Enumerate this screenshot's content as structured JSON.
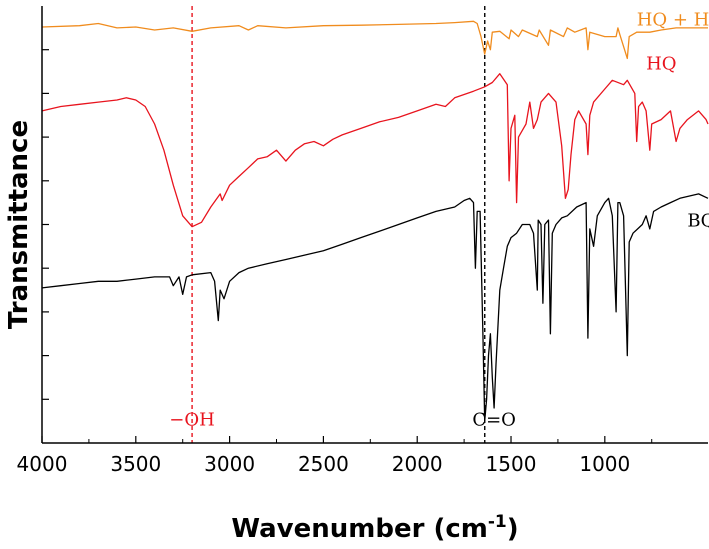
{
  "chart_data": {
    "type": "line",
    "xlabel": "Wavenumber (cm",
    "xlabel_sup": "-1",
    "xlabel_close": ")",
    "ylabel": "Transmittance",
    "xlim": [
      4000,
      450
    ],
    "x_reversed": true,
    "ylim": [
      0,
      10
    ],
    "x_ticks": [
      4000,
      3500,
      3000,
      2500,
      2000,
      1500,
      1000
    ],
    "x_tick_labels": [
      "4000",
      "3500",
      "3000",
      "2500",
      "2000",
      "1500",
      "1000"
    ],
    "y_ticks": [
      1,
      2,
      3,
      4,
      5,
      6,
      7,
      8,
      9
    ],
    "y_tick_labels_shown": false,
    "grid": false,
    "series": [
      {
        "name": "HQ + HTIB",
        "color": "#f08c1e",
        "points": [
          [
            4000,
            9.52
          ],
          [
            3800,
            9.55
          ],
          [
            3700,
            9.6
          ],
          [
            3600,
            9.5
          ],
          [
            3500,
            9.52
          ],
          [
            3400,
            9.45
          ],
          [
            3300,
            9.5
          ],
          [
            3200,
            9.42
          ],
          [
            3100,
            9.5
          ],
          [
            2950,
            9.55
          ],
          [
            2900,
            9.45
          ],
          [
            2850,
            9.55
          ],
          [
            2700,
            9.5
          ],
          [
            2500,
            9.55
          ],
          [
            2300,
            9.56
          ],
          [
            2100,
            9.58
          ],
          [
            1900,
            9.6
          ],
          [
            1800,
            9.62
          ],
          [
            1700,
            9.65
          ],
          [
            1680,
            9.6
          ],
          [
            1660,
            9.3
          ],
          [
            1640,
            8.9
          ],
          [
            1625,
            9.2
          ],
          [
            1610,
            9.0
          ],
          [
            1600,
            9.4
          ],
          [
            1560,
            9.42
          ],
          [
            1510,
            9.25
          ],
          [
            1500,
            9.45
          ],
          [
            1460,
            9.3
          ],
          [
            1440,
            9.45
          ],
          [
            1360,
            9.3
          ],
          [
            1350,
            9.45
          ],
          [
            1300,
            9.1
          ],
          [
            1290,
            9.45
          ],
          [
            1220,
            9.3
          ],
          [
            1200,
            9.5
          ],
          [
            1160,
            9.4
          ],
          [
            1100,
            9.5
          ],
          [
            1090,
            9.0
          ],
          [
            1080,
            9.4
          ],
          [
            1000,
            9.3
          ],
          [
            940,
            9.3
          ],
          [
            930,
            9.5
          ],
          [
            920,
            9.35
          ],
          [
            880,
            8.8
          ],
          [
            870,
            9.3
          ],
          [
            830,
            9.4
          ],
          [
            760,
            9.4
          ],
          [
            700,
            9.45
          ],
          [
            620,
            9.5
          ],
          [
            560,
            9.5
          ],
          [
            500,
            9.5
          ],
          [
            450,
            9.5
          ]
        ]
      },
      {
        "name": "HQ",
        "color": "#e8141e",
        "points": [
          [
            4000,
            7.6
          ],
          [
            3900,
            7.7
          ],
          [
            3800,
            7.75
          ],
          [
            3700,
            7.8
          ],
          [
            3600,
            7.85
          ],
          [
            3550,
            7.9
          ],
          [
            3500,
            7.85
          ],
          [
            3450,
            7.7
          ],
          [
            3400,
            7.3
          ],
          [
            3350,
            6.7
          ],
          [
            3300,
            5.9
          ],
          [
            3250,
            5.2
          ],
          [
            3200,
            4.95
          ],
          [
            3150,
            5.05
          ],
          [
            3100,
            5.4
          ],
          [
            3050,
            5.7
          ],
          [
            3040,
            5.55
          ],
          [
            3000,
            5.9
          ],
          [
            2950,
            6.1
          ],
          [
            2900,
            6.3
          ],
          [
            2850,
            6.5
          ],
          [
            2800,
            6.55
          ],
          [
            2750,
            6.7
          ],
          [
            2700,
            6.45
          ],
          [
            2650,
            6.7
          ],
          [
            2600,
            6.85
          ],
          [
            2550,
            6.9
          ],
          [
            2500,
            6.8
          ],
          [
            2450,
            6.95
          ],
          [
            2400,
            7.05
          ],
          [
            2300,
            7.2
          ],
          [
            2200,
            7.35
          ],
          [
            2100,
            7.45
          ],
          [
            2000,
            7.6
          ],
          [
            1900,
            7.75
          ],
          [
            1850,
            7.7
          ],
          [
            1800,
            7.9
          ],
          [
            1700,
            8.05
          ],
          [
            1640,
            8.15
          ],
          [
            1600,
            8.25
          ],
          [
            1560,
            8.45
          ],
          [
            1520,
            8.2
          ],
          [
            1510,
            6.0
          ],
          [
            1500,
            7.2
          ],
          [
            1480,
            7.5
          ],
          [
            1470,
            5.5
          ],
          [
            1460,
            7.0
          ],
          [
            1420,
            7.3
          ],
          [
            1400,
            7.8
          ],
          [
            1380,
            7.2
          ],
          [
            1360,
            7.4
          ],
          [
            1340,
            7.8
          ],
          [
            1300,
            8.0
          ],
          [
            1260,
            7.8
          ],
          [
            1230,
            6.8
          ],
          [
            1210,
            5.6
          ],
          [
            1195,
            5.8
          ],
          [
            1180,
            6.6
          ],
          [
            1160,
            7.4
          ],
          [
            1140,
            7.6
          ],
          [
            1100,
            7.3
          ],
          [
            1090,
            6.6
          ],
          [
            1080,
            7.5
          ],
          [
            1060,
            7.8
          ],
          [
            1000,
            8.1
          ],
          [
            960,
            8.3
          ],
          [
            900,
            8.2
          ],
          [
            880,
            8.3
          ],
          [
            840,
            8.0
          ],
          [
            830,
            6.9
          ],
          [
            820,
            7.7
          ],
          [
            800,
            7.8
          ],
          [
            780,
            7.6
          ],
          [
            760,
            6.7
          ],
          [
            750,
            7.3
          ],
          [
            700,
            7.4
          ],
          [
            650,
            7.6
          ],
          [
            620,
            6.9
          ],
          [
            600,
            7.2
          ],
          [
            560,
            7.4
          ],
          [
            500,
            7.6
          ],
          [
            460,
            7.4
          ],
          [
            450,
            7.3
          ]
        ]
      },
      {
        "name": "BQ",
        "color": "#000000",
        "points": [
          [
            4000,
            3.55
          ],
          [
            3900,
            3.6
          ],
          [
            3800,
            3.65
          ],
          [
            3700,
            3.7
          ],
          [
            3600,
            3.7
          ],
          [
            3500,
            3.75
          ],
          [
            3400,
            3.8
          ],
          [
            3320,
            3.8
          ],
          [
            3300,
            3.6
          ],
          [
            3270,
            3.8
          ],
          [
            3250,
            3.4
          ],
          [
            3230,
            3.8
          ],
          [
            3200,
            3.85
          ],
          [
            3100,
            3.9
          ],
          [
            3080,
            3.7
          ],
          [
            3060,
            2.8
          ],
          [
            3050,
            3.5
          ],
          [
            3030,
            3.3
          ],
          [
            3000,
            3.7
          ],
          [
            2950,
            3.9
          ],
          [
            2900,
            4.0
          ],
          [
            2800,
            4.1
          ],
          [
            2700,
            4.2
          ],
          [
            2600,
            4.3
          ],
          [
            2500,
            4.4
          ],
          [
            2400,
            4.55
          ],
          [
            2300,
            4.7
          ],
          [
            2200,
            4.85
          ],
          [
            2100,
            5.0
          ],
          [
            2000,
            5.15
          ],
          [
            1900,
            5.3
          ],
          [
            1800,
            5.4
          ],
          [
            1750,
            5.55
          ],
          [
            1720,
            5.6
          ],
          [
            1700,
            5.5
          ],
          [
            1690,
            4.0
          ],
          [
            1680,
            5.3
          ],
          [
            1665,
            5.3
          ],
          [
            1650,
            2.5
          ],
          [
            1640,
            0.5
          ],
          [
            1630,
            1.0
          ],
          [
            1620,
            2.0
          ],
          [
            1610,
            2.5
          ],
          [
            1600,
            1.5
          ],
          [
            1590,
            0.8
          ],
          [
            1580,
            1.8
          ],
          [
            1560,
            3.5
          ],
          [
            1540,
            4.0
          ],
          [
            1520,
            4.5
          ],
          [
            1500,
            4.7
          ],
          [
            1470,
            4.8
          ],
          [
            1440,
            5.0
          ],
          [
            1400,
            5.0
          ],
          [
            1380,
            4.8
          ],
          [
            1360,
            3.5
          ],
          [
            1355,
            5.1
          ],
          [
            1340,
            5.0
          ],
          [
            1330,
            3.2
          ],
          [
            1320,
            5.0
          ],
          [
            1300,
            5.1
          ],
          [
            1290,
            2.5
          ],
          [
            1280,
            4.8
          ],
          [
            1260,
            5.0
          ],
          [
            1230,
            5.15
          ],
          [
            1200,
            5.2
          ],
          [
            1150,
            5.4
          ],
          [
            1100,
            5.5
          ],
          [
            1090,
            2.4
          ],
          [
            1080,
            4.9
          ],
          [
            1060,
            4.5
          ],
          [
            1040,
            5.2
          ],
          [
            1000,
            5.5
          ],
          [
            980,
            5.6
          ],
          [
            960,
            5.2
          ],
          [
            940,
            3.0
          ],
          [
            930,
            5.5
          ],
          [
            920,
            5.5
          ],
          [
            900,
            5.2
          ],
          [
            880,
            2.0
          ],
          [
            870,
            4.6
          ],
          [
            850,
            4.8
          ],
          [
            800,
            5.0
          ],
          [
            780,
            5.2
          ],
          [
            760,
            4.9
          ],
          [
            740,
            5.3
          ],
          [
            700,
            5.4
          ],
          [
            650,
            5.5
          ],
          [
            600,
            5.6
          ],
          [
            500,
            5.7
          ],
          [
            450,
            5.6
          ]
        ]
      }
    ],
    "series_labels": [
      {
        "text": "HQ + HTIB",
        "color": "#f08c1e",
        "at": [
          830,
          9.55
        ]
      },
      {
        "text": "HQ",
        "color": "#e8141e",
        "at": [
          780,
          8.55
        ]
      },
      {
        "text": "BQ",
        "color": "#000000",
        "at": [
          560,
          4.95
        ]
      }
    ],
    "reference_lines": [
      {
        "x": 3200,
        "color": "#e8141e",
        "style": "dashed",
        "label": "−OH",
        "label_at": [
          3200,
          0.4
        ]
      },
      {
        "x": 1640,
        "color": "#000000",
        "style": "dashed",
        "label": "C=O",
        "label_at": [
          1590,
          0.4
        ]
      }
    ]
  }
}
